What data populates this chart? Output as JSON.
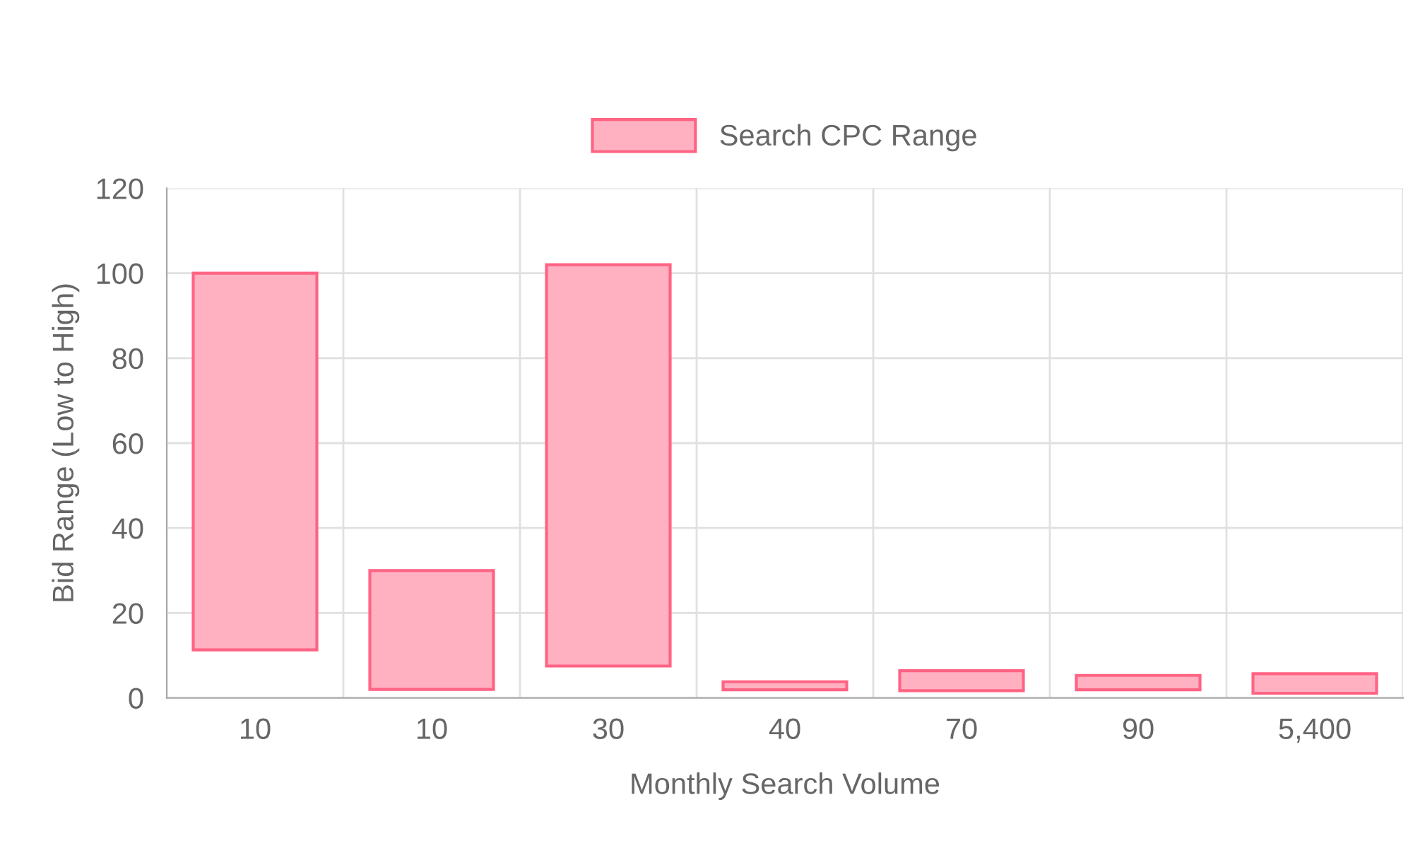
{
  "chart_data": {
    "type": "bar",
    "xlabel": "Monthly Search Volume",
    "ylabel": "Bid Range (Low to High)",
    "categories": [
      "10",
      "10",
      "30",
      "40",
      "70",
      "90",
      "5,400"
    ],
    "series": [
      {
        "name": "Search CPC Range",
        "color": "#ffb1c1",
        "values": [
          88.7,
          28,
          94.5,
          1.9,
          4.7,
          3.4,
          4.6
        ],
        "base": [
          11.3,
          2,
          7.5,
          1.9,
          1.7,
          1.9,
          1.1
        ]
      }
    ],
    "ylim": [
      0,
      120
    ],
    "yticks": [
      0,
      20,
      40,
      60,
      80,
      100,
      120
    ],
    "grid": true,
    "legend": "top"
  }
}
